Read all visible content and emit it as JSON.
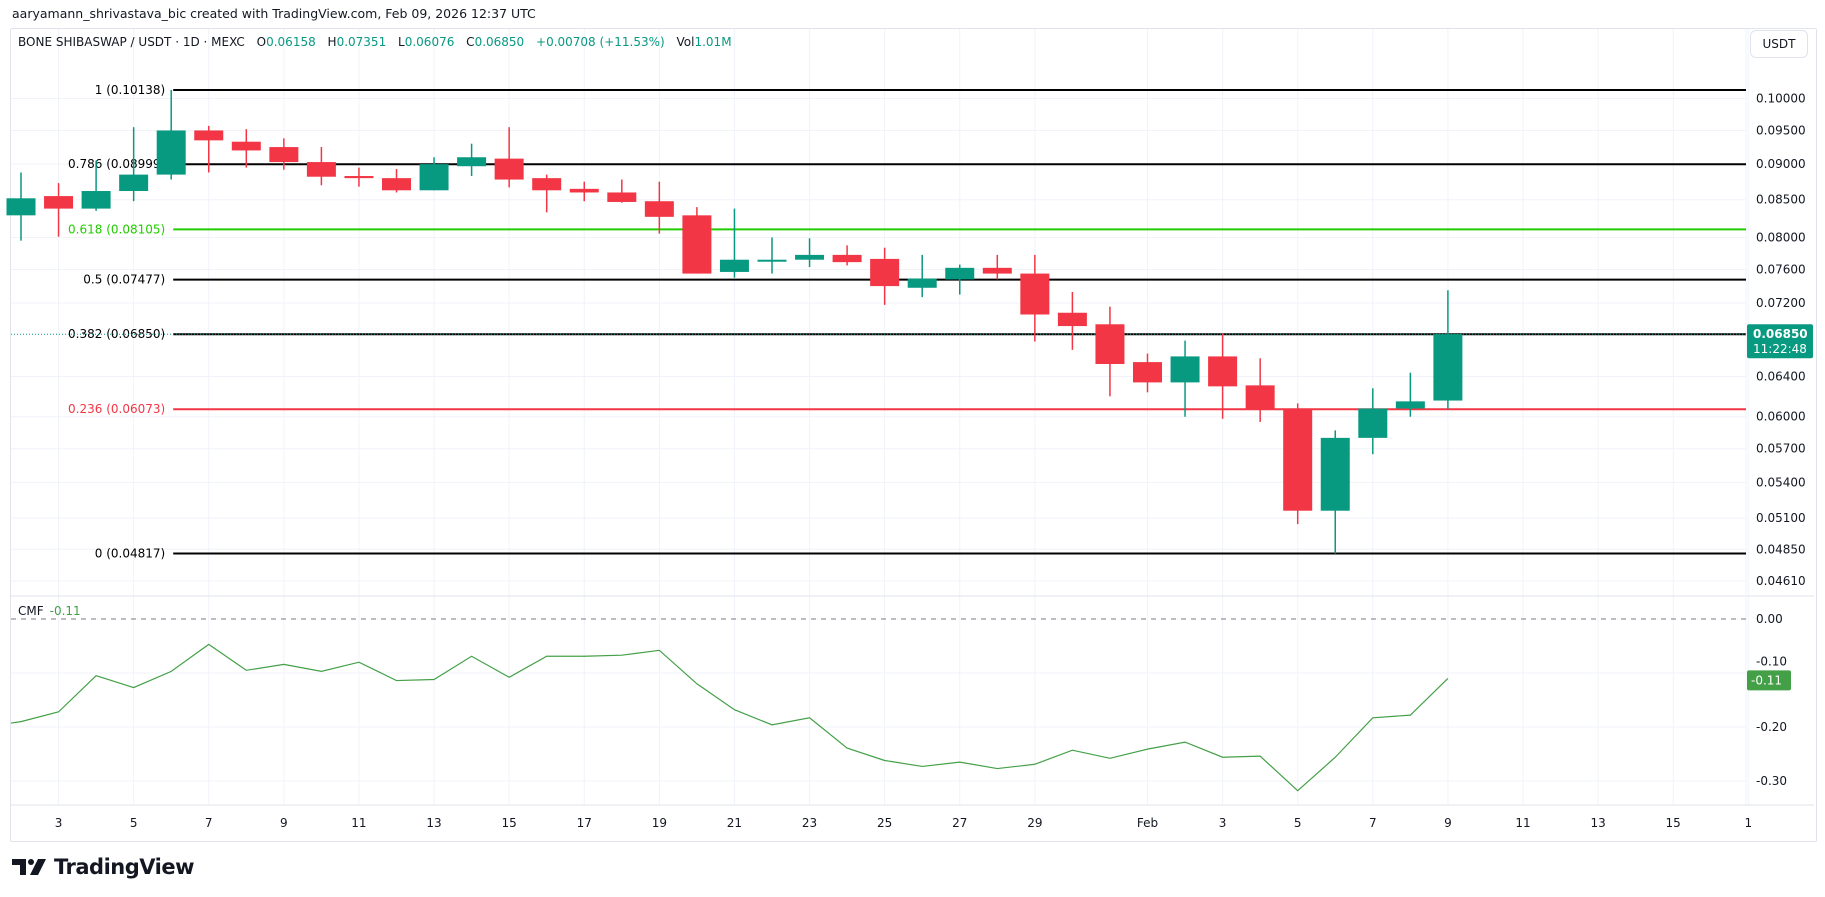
{
  "attribution": "aaryamann_shrivastava_bic created with TradingView.com, Feb 09, 2026 12:37 UTC",
  "legend": {
    "symbol": "BONE SHIBASWAP / USDT · 1D · MEXC",
    "open_label": "O",
    "open": "0.06158",
    "high_label": "H",
    "high": "0.07351",
    "low_label": "L",
    "low": "0.06076",
    "close_label": "C",
    "close": "0.06850",
    "change": "+0.00708 (+11.53%)",
    "vol_label": "Vol",
    "vol": "1.01M"
  },
  "currency_button": "USDT",
  "colors": {
    "up": "#089981",
    "down": "#f23645",
    "fib_0618": "#22cc00",
    "fib_0236": "#f23645",
    "fib_default": "#000000",
    "cmf_line": "#43a047",
    "grid": "#f0f3fa"
  },
  "price_axis": {
    "scale": "log",
    "ticks": [
      "0.10000",
      "0.09500",
      "0.09000",
      "0.08500",
      "0.08000",
      "0.07600",
      "0.07200",
      "0.06400",
      "0.06000",
      "0.05700",
      "0.05400",
      "0.05100",
      "0.04850",
      "0.04610"
    ],
    "last_price": "0.06850",
    "countdown": "11:22:48"
  },
  "fib_levels": [
    {
      "ratio": "1",
      "price": "0.10138",
      "label": "1 (0.10138)"
    },
    {
      "ratio": "0.786",
      "price": "0.08999",
      "label": "0.786 (0.08999)"
    },
    {
      "ratio": "0.618",
      "price": "0.08105",
      "label": "0.618 (0.08105)"
    },
    {
      "ratio": "0.5",
      "price": "0.07477",
      "label": "0.5 (0.07477)"
    },
    {
      "ratio": "0.382",
      "price": "0.06850",
      "label": "0.382 (0.06850)"
    },
    {
      "ratio": "0.236",
      "price": "0.06073",
      "label": "0.236 (0.06073)"
    },
    {
      "ratio": "0",
      "price": "0.04817",
      "label": "0 (0.04817)"
    }
  ],
  "chart_data": {
    "type": "candlestick",
    "candles": [
      [
        "Jan 2",
        0.0829,
        0.0888,
        0.0796,
        0.0852
      ],
      [
        "Jan 3",
        0.0855,
        0.0873,
        0.0801,
        0.0838
      ],
      [
        "Jan 4",
        0.0838,
        0.0905,
        0.0835,
        0.0862
      ],
      [
        "Jan 5",
        0.0862,
        0.0955,
        0.0848,
        0.0885
      ],
      [
        "Jan 6",
        0.0885,
        0.10138,
        0.0878,
        0.095
      ],
      [
        "Jan 7",
        0.095,
        0.0957,
        0.0888,
        0.0935
      ],
      [
        "Jan 8",
        0.0933,
        0.0952,
        0.0895,
        0.092
      ],
      [
        "Jan 9",
        0.0925,
        0.0938,
        0.0892,
        0.0903
      ],
      [
        "Jan 10",
        0.0903,
        0.0925,
        0.087,
        0.0882
      ],
      [
        "Jan 11",
        0.0883,
        0.0895,
        0.0868,
        0.088
      ],
      [
        "Jan 12",
        0.088,
        0.0893,
        0.086,
        0.0863
      ],
      [
        "Jan 13",
        0.0863,
        0.091,
        0.0863,
        0.09
      ],
      [
        "Jan 14",
        0.0897,
        0.093,
        0.0883,
        0.091
      ],
      [
        "Jan 15",
        0.0908,
        0.0955,
        0.0867,
        0.0878
      ],
      [
        "Jan 16",
        0.088,
        0.0885,
        0.0833,
        0.0863
      ],
      [
        "Jan 17",
        0.0865,
        0.0875,
        0.0848,
        0.086
      ],
      [
        "Jan 18",
        0.086,
        0.0878,
        0.0846,
        0.0847
      ],
      [
        "Jan 19",
        0.0848,
        0.0875,
        0.0805,
        0.0827
      ],
      [
        "Jan 20",
        0.0829,
        0.084,
        0.0755,
        0.0755
      ],
      [
        "Jan 21",
        0.0757,
        0.0838,
        0.075,
        0.0772
      ],
      [
        "Jan 22",
        0.077,
        0.08,
        0.0755,
        0.0772
      ],
      [
        "Jan 23",
        0.0772,
        0.0799,
        0.0763,
        0.0778
      ],
      [
        "Jan 24",
        0.0778,
        0.079,
        0.0765,
        0.0769
      ],
      [
        "Jan 25",
        0.0773,
        0.0787,
        0.0718,
        0.074
      ],
      [
        "Jan 26",
        0.0738,
        0.0778,
        0.0727,
        0.0749
      ],
      [
        "Jan 27",
        0.0748,
        0.0766,
        0.073,
        0.0762
      ],
      [
        "Jan 28",
        0.0762,
        0.0778,
        0.0748,
        0.0755
      ],
      [
        "Jan 29",
        0.0755,
        0.0778,
        0.0677,
        0.0707
      ],
      [
        "Jan 30",
        0.0709,
        0.0733,
        0.0668,
        0.0694
      ],
      [
        "Jan 31",
        0.0696,
        0.0716,
        0.062,
        0.0653
      ],
      [
        "Feb 1",
        0.0655,
        0.0664,
        0.0624,
        0.0634
      ],
      [
        "Feb 2",
        0.0634,
        0.0678,
        0.06,
        0.0661
      ],
      [
        "Feb 3",
        0.0661,
        0.0686,
        0.0598,
        0.063
      ],
      [
        "Feb 4",
        0.0631,
        0.0659,
        0.0595,
        0.0607
      ],
      [
        "Feb 5",
        0.0608,
        0.0613,
        0.0505,
        0.0516
      ],
      [
        "Feb 6",
        0.0516,
        0.0587,
        0.04817,
        0.058
      ],
      [
        "Feb 7",
        0.058,
        0.0628,
        0.0565,
        0.0608
      ],
      [
        "Feb 8",
        0.0608,
        0.0644,
        0.06,
        0.0615
      ],
      [
        "Feb 9",
        0.06158,
        0.07351,
        0.06076,
        0.0685
      ]
    ],
    "x_ticks": [
      {
        "date": "Jan 3",
        "label": "3"
      },
      {
        "date": "Jan 5",
        "label": "5"
      },
      {
        "date": "Jan 7",
        "label": "7"
      },
      {
        "date": "Jan 9",
        "label": "9"
      },
      {
        "date": "Jan 11",
        "label": "11"
      },
      {
        "date": "Jan 13",
        "label": "13"
      },
      {
        "date": "Jan 15",
        "label": "15"
      },
      {
        "date": "Jan 17",
        "label": "17"
      },
      {
        "date": "Jan 19",
        "label": "19"
      },
      {
        "date": "Jan 21",
        "label": "21"
      },
      {
        "date": "Jan 23",
        "label": "23"
      },
      {
        "date": "Jan 25",
        "label": "25"
      },
      {
        "date": "Jan 27",
        "label": "27"
      },
      {
        "date": "Jan 29",
        "label": "29"
      },
      {
        "date": "Feb 1",
        "label": "Feb"
      },
      {
        "date": "Feb 3",
        "label": "3"
      },
      {
        "date": "Feb 5",
        "label": "5"
      },
      {
        "date": "Feb 7",
        "label": "7"
      },
      {
        "date": "Feb 9",
        "label": "9"
      },
      {
        "date": "Feb 11",
        "label": "11"
      },
      {
        "date": "Feb 13",
        "label": "13"
      },
      {
        "date": "Feb 15",
        "label": "15"
      },
      {
        "date": "Feb 17",
        "label": "1"
      }
    ]
  },
  "cmf": {
    "label": "CMF",
    "value": "-0.11",
    "axis_ticks": [
      "0.00",
      "-0.10",
      "-0.20",
      "-0.30"
    ],
    "series": [
      -0.2,
      -0.19,
      -0.172,
      -0.105,
      -0.127,
      -0.097,
      -0.047,
      -0.095,
      -0.084,
      -0.097,
      -0.08,
      -0.114,
      -0.112,
      -0.069,
      -0.108,
      -0.069,
      -0.069,
      -0.067,
      -0.058,
      -0.12,
      -0.168,
      -0.196,
      -0.183,
      -0.239,
      -0.262,
      -0.273,
      -0.265,
      -0.277,
      -0.269,
      -0.243,
      -0.258,
      -0.241,
      -0.228,
      -0.256,
      -0.254,
      -0.318,
      -0.256,
      -0.183,
      -0.178,
      -0.11
    ]
  },
  "brand": "TradingView"
}
